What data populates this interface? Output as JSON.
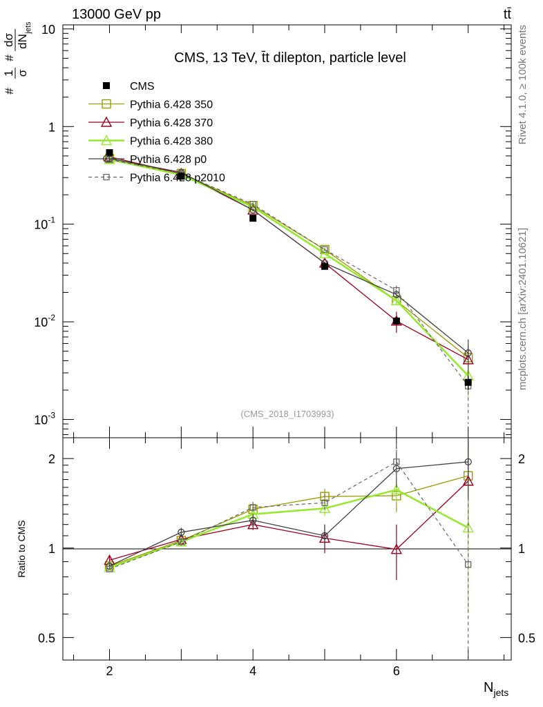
{
  "header": {
    "energy_label": "13000 GeV pp",
    "process_label": "tt̄",
    "rivet_label": "Rivet 4.1.0, ≥ 100k events",
    "site_label": "mcplots.cern.ch [arXiv:2401.10621]"
  },
  "main_panel": {
    "title": "CMS, 13 TeV, t̄t dilepton, particle level",
    "analysis_tag": "(CMS_2018_I1703993)",
    "ylabel_parts": {
      "hash1": "#",
      "one": "1",
      "sigma": "σ",
      "hash2": "#",
      "dsigma": "dσ",
      "dN": "dN",
      "jets_sub": "jets"
    }
  },
  "ratio_panel": {
    "ylabel": "Ratio to CMS"
  },
  "x_axis": {
    "label": "N",
    "label_sub": "jets"
  },
  "chart_data": {
    "type": "line",
    "x": [
      2,
      3,
      4,
      5,
      6,
      7
    ],
    "xlim": [
      1.35,
      7.6
    ],
    "xticks": [
      "2",
      "4",
      "6"
    ],
    "main": {
      "yscale": "log",
      "ylim": [
        0.00065,
        11
      ],
      "yticks": [
        {
          "base": "10",
          "exp": "-3",
          "value": 0.001
        },
        {
          "base": "10",
          "exp": "-2",
          "value": 0.01
        },
        {
          "base": "10",
          "exp": "-1",
          "value": 0.1
        },
        {
          "base": "1",
          "exp": "",
          "value": 1
        },
        {
          "base": "10",
          "exp": "",
          "value": 10
        }
      ]
    },
    "ratio": {
      "yscale": "log",
      "ylim": [
        0.42,
        2.35
      ],
      "yticks": [
        "0.5",
        "1",
        "2"
      ]
    },
    "data": {
      "name": "CMS",
      "color": "#000000",
      "values": [
        0.54,
        0.31,
        0.115,
        0.037,
        0.0102,
        0.0024
      ],
      "errors": [
        0.03,
        0.015,
        0.007,
        0.002,
        0.0008,
        0.0004
      ]
    },
    "series": [
      {
        "name": "Pythia 6.428 350",
        "color": "#999900",
        "marker": "square",
        "dashed": false,
        "width": 1.3,
        "values": [
          0.47,
          0.33,
          0.155,
          0.055,
          0.0165,
          0.0043
        ],
        "errors": [
          0.008,
          0.006,
          0.004,
          0.0018,
          0.0012,
          0.0008
        ],
        "ratio": [
          0.87,
          1.06,
          1.35,
          1.49,
          1.5,
          1.75
        ],
        "ratio_errors": [
          0.02,
          0.03,
          0.05,
          0.09,
          0.18,
          0.45
        ]
      },
      {
        "name": "Pythia 6.428 370",
        "color": "#990020",
        "marker": "triangle",
        "dashed": false,
        "width": 1.3,
        "values": [
          0.49,
          0.33,
          0.14,
          0.04,
          0.0102,
          0.0041
        ],
        "errors": [
          0.008,
          0.006,
          0.004,
          0.0015,
          0.0025,
          0.0016
        ],
        "ratio": [
          0.91,
          1.07,
          1.2,
          1.08,
          0.99,
          1.68
        ],
        "ratio_errors": [
          0.03,
          0.03,
          0.05,
          0.12,
          0.21,
          0.6
        ]
      },
      {
        "name": "Pythia 6.428 380",
        "color": "#99e633",
        "marker": "triangle",
        "dashed": false,
        "width": 2.6,
        "values": [
          0.46,
          0.32,
          0.15,
          0.05,
          0.0165,
          0.0028
        ],
        "errors": [
          0.008,
          0.006,
          0.004,
          0.0015,
          0.0015,
          0.0012
        ],
        "ratio": [
          0.86,
          1.05,
          1.3,
          1.36,
          1.57,
          1.17
        ],
        "ratio_errors": [
          0.02,
          0.03,
          0.05,
          0.08,
          0.15,
          0.55
        ]
      },
      {
        "name": "Pythia 6.428 p0",
        "color": "#404040",
        "marker": "circle",
        "dashed": false,
        "width": 1.3,
        "values": [
          0.47,
          0.34,
          0.14,
          0.04,
          0.019,
          0.0048
        ],
        "errors": [
          0.008,
          0.007,
          0.004,
          0.0015,
          0.0015,
          0.0018
        ],
        "ratio": [
          0.87,
          1.13,
          1.24,
          1.1,
          1.85,
          1.95
        ],
        "ratio_errors": [
          0.02,
          0.04,
          0.06,
          0.1,
          0.25,
          0.5
        ]
      },
      {
        "name": "Pythia 6.428 p2010",
        "color": "#666666",
        "marker": "square-small",
        "dashed": true,
        "width": 1.2,
        "values": [
          0.46,
          0.33,
          0.16,
          0.055,
          0.021,
          0.0022
        ],
        "errors": [
          0.008,
          0.006,
          0.004,
          0.0018,
          0.0025,
          0.0013
        ],
        "ratio": [
          0.85,
          1.05,
          1.37,
          1.42,
          1.95,
          0.88
        ],
        "ratio_errors": [
          0.02,
          0.03,
          0.06,
          0.1,
          0.3,
          0.6
        ]
      }
    ]
  }
}
